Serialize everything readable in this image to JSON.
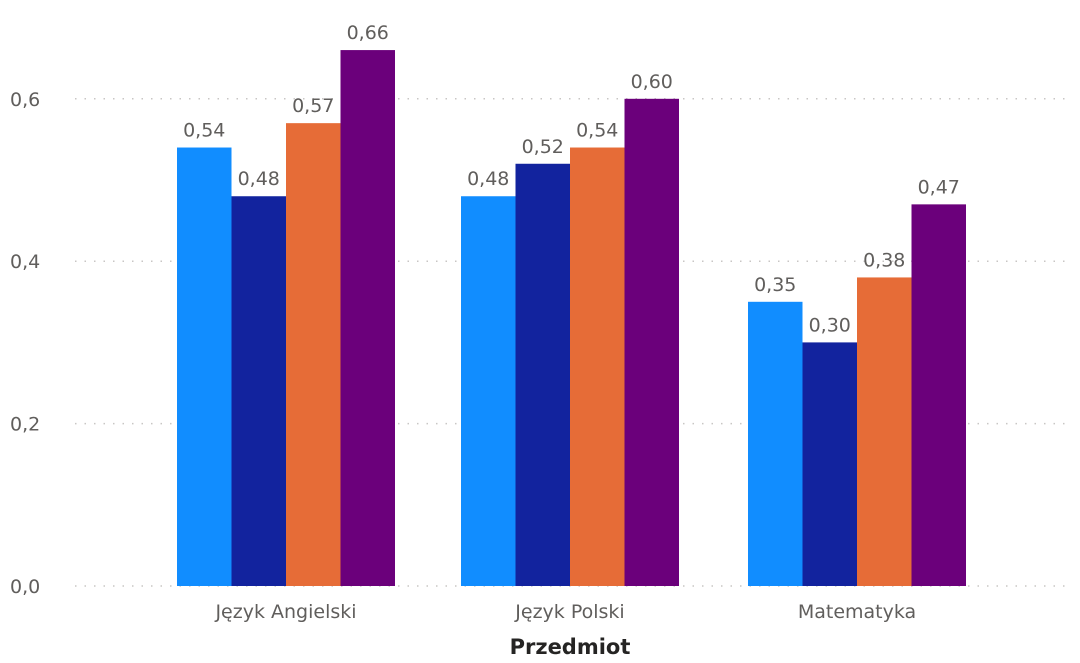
{
  "chart_data": {
    "type": "bar",
    "title": "",
    "xlabel": "Przedmiot",
    "ylabel": "",
    "categories": [
      "Język Angielski",
      "Język Polski",
      "Matematyka"
    ],
    "series": [
      {
        "values": [
          0.54,
          0.48,
          0.35
        ],
        "color": "#118dff"
      },
      {
        "values": [
          0.48,
          0.52,
          0.3
        ],
        "color": "#12239e"
      },
      {
        "values": [
          0.57,
          0.54,
          0.38
        ],
        "color": "#e66c37"
      },
      {
        "values": [
          0.66,
          0.6,
          0.47
        ],
        "color": "#6b007b"
      }
    ],
    "ylim": [
      0,
      0.72
    ],
    "yticks": [
      0.0,
      0.2,
      0.4,
      0.6
    ],
    "ytick_labels": [
      "0,0",
      "0,2",
      "0,4",
      "0,6"
    ],
    "data_labels": [
      [
        "0,54",
        "0,48",
        "0,35"
      ],
      [
        "0,48",
        "0,52",
        "0,30"
      ],
      [
        "0,57",
        "0,54",
        "0,38"
      ],
      [
        "0,66",
        "0,60",
        "0,47"
      ]
    ],
    "grid": true,
    "legend": "none"
  }
}
